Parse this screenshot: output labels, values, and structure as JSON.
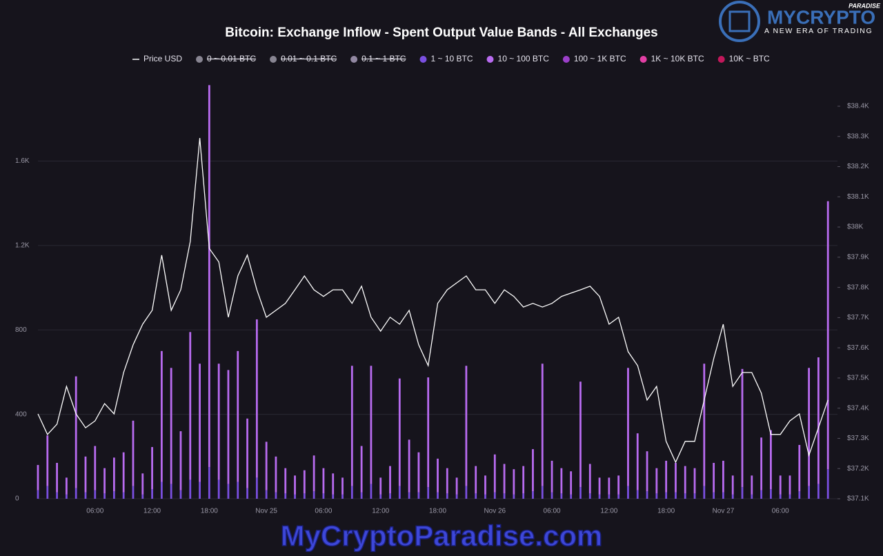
{
  "chart_data": {
    "type": "bar",
    "title": "Bitcoin: Exchange Inflow - Spent Output Value Bands - All Exchanges",
    "categories": [
      null,
      null,
      null,
      null,
      null,
      null,
      "06:00",
      null,
      null,
      null,
      null,
      null,
      "12:00",
      null,
      null,
      null,
      null,
      null,
      "18:00",
      null,
      null,
      null,
      null,
      null,
      "Nov 25",
      null,
      null,
      null,
      null,
      null,
      "06:00",
      null,
      null,
      null,
      null,
      null,
      "12:00",
      null,
      null,
      null,
      null,
      null,
      "18:00",
      null,
      null,
      null,
      null,
      null,
      "Nov 26",
      null,
      null,
      null,
      null,
      null,
      "06:00",
      null,
      null,
      null,
      null,
      null,
      "12:00",
      null,
      null,
      null,
      null,
      null,
      "18:00",
      null,
      null,
      null,
      null,
      null,
      "Nov 27",
      null,
      null,
      null,
      null,
      null,
      "06:00",
      null,
      null,
      null,
      null,
      null
    ],
    "ylim": [
      0,
      1860
    ],
    "yticks": [
      0,
      400,
      800,
      {
        "value": 1200,
        "label": "1.2K"
      },
      {
        "value": 1600,
        "label": "1.6K"
      }
    ],
    "y2lim": [
      37100,
      38400
    ],
    "y2ticks": [
      {
        "value": 37100,
        "label": "$37.1K"
      },
      {
        "value": 37200,
        "label": "$37.2K"
      },
      {
        "value": 37300,
        "label": "$37.3K"
      },
      {
        "value": 37400,
        "label": "$37.4K"
      },
      {
        "value": 37500,
        "label": "$37.5K"
      },
      {
        "value": 37600,
        "label": "$37.6K"
      },
      {
        "value": 37700,
        "label": "$37.7K"
      },
      {
        "value": 37800,
        "label": "$37.8K"
      },
      {
        "value": 37900,
        "label": "$37.9K"
      },
      {
        "value": 38000,
        "label": "$38K"
      },
      {
        "value": 38100,
        "label": "$38.1K"
      },
      {
        "value": 38200,
        "label": "$38.2K"
      },
      {
        "value": 38300,
        "label": "$38.3K"
      },
      {
        "value": 38400,
        "label": "$38.4K"
      }
    ],
    "grid": true,
    "series": [
      {
        "name": "Price USD",
        "type": "line",
        "axis": "y2",
        "color": "#ffffff",
        "values": [
          37381,
          37313,
          37347,
          37472,
          37381,
          37335,
          37358,
          37415,
          37381,
          37518,
          37610,
          37678,
          37724,
          37907,
          37724,
          37792,
          37952,
          38295,
          37929,
          37884,
          37701,
          37838,
          37907,
          37792,
          37701,
          37724,
          37747,
          37792,
          37838,
          37792,
          37770,
          37792,
          37792,
          37747,
          37804,
          37701,
          37655,
          37701,
          37678,
          37724,
          37610,
          37541,
          37747,
          37792,
          37815,
          37838,
          37792,
          37792,
          37747,
          37792,
          37770,
          37735,
          37747,
          37735,
          37747,
          37770,
          37781,
          37792,
          37804,
          37770,
          37678,
          37701,
          37587,
          37541,
          37427,
          37472,
          37290,
          37221,
          37290,
          37290,
          37427,
          37564,
          37678,
          37472,
          37518,
          37518,
          37450,
          37313,
          37313,
          37358,
          37381,
          37244,
          37335,
          37427
        ]
      },
      {
        "name": "0 ~ 0.01 BTC",
        "color": "#b9b5c4",
        "hidden": true
      },
      {
        "name": "0.01 ~ 0.1 BTC",
        "color": "#b9b5c4",
        "hidden": true
      },
      {
        "name": "0.1 ~ 1 BTC",
        "color": "#c7b9dc",
        "hidden": true
      },
      {
        "name": "1 ~ 10 BTC",
        "color": "#7a4fe0",
        "values": [
          40,
          60,
          30,
          20,
          50,
          30,
          40,
          25,
          35,
          30,
          60,
          20,
          45,
          80,
          70,
          40,
          90,
          80,
          150,
          90,
          70,
          80,
          50,
          100,
          40,
          30,
          25,
          20,
          25,
          35,
          25,
          20,
          20,
          60,
          30,
          70,
          20,
          25,
          60,
          30,
          30,
          55,
          30,
          25,
          20,
          60,
          25,
          20,
          30,
          25,
          20,
          25,
          35,
          60,
          30,
          25,
          20,
          55,
          25,
          20,
          20,
          20,
          60,
          40,
          35,
          25,
          30,
          30,
          25,
          25,
          60,
          30,
          30,
          20,
          55,
          20,
          40,
          45,
          20,
          20,
          35,
          60,
          70,
          140
        ]
      },
      {
        "name": "10 ~ 100 BTC",
        "color": "#b86bf0",
        "values": [
          120,
          240,
          140,
          80,
          530,
          170,
          210,
          120,
          160,
          190,
          310,
          100,
          200,
          620,
          550,
          280,
          700,
          560,
          1810,
          550,
          540,
          620,
          330,
          750,
          230,
          170,
          120,
          90,
          110,
          170,
          120,
          100,
          80,
          570,
          220,
          560,
          80,
          130,
          510,
          250,
          190,
          520,
          160,
          120,
          80,
          570,
          130,
          90,
          180,
          140,
          120,
          130,
          200,
          580,
          150,
          120,
          110,
          500,
          140,
          80,
          80,
          90,
          560,
          270,
          190,
          120,
          150,
          140,
          130,
          120,
          580,
          140,
          150,
          90,
          560,
          90,
          250,
          280,
          90,
          90,
          220,
          560,
          600,
          1270
        ]
      },
      {
        "name": "100 ~ 1K BTC",
        "color": "#9b3fc9"
      },
      {
        "name": "1K ~ 10K BTC",
        "color": "#e33fa5"
      },
      {
        "name": "10K ~ BTC",
        "color": "#c2185b"
      }
    ]
  },
  "branding": {
    "logo": "MYCRYPTO",
    "logo_sup": "PARADISE",
    "tagline": "A NEW ERA OF TRADING",
    "watermark": "MyCryptoParadise.com"
  }
}
